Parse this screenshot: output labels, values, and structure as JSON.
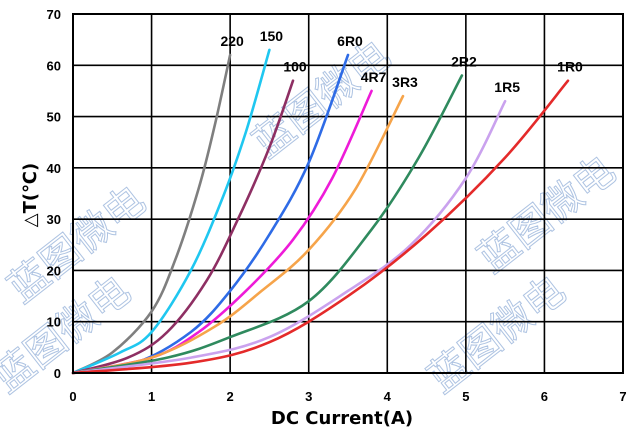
{
  "chart_data": {
    "type": "line",
    "xlabel": "DC Current(A)",
    "ylabel": "△T(℃)",
    "xlim": [
      0,
      7
    ],
    "ylim": [
      0,
      70
    ],
    "xticks": [
      "0",
      "1",
      "2",
      "3",
      "4",
      "5",
      "6",
      "7"
    ],
    "yticks": [
      "0",
      "10",
      "20",
      "30",
      "40",
      "50",
      "60",
      "70"
    ],
    "grid": true,
    "series": [
      {
        "name": "220",
        "color": "#7f7f7f",
        "x": [
          0,
          0.5,
          1.0,
          1.3,
          1.6,
          1.8,
          2.0
        ],
        "y": [
          0,
          4,
          12,
          22,
          36,
          48,
          62
        ]
      },
      {
        "name": "150",
        "color": "#1fc7f0",
        "x": [
          0,
          0.6,
          1.0,
          1.5,
          1.9,
          2.2,
          2.5
        ],
        "y": [
          0,
          4,
          8,
          20,
          34,
          47,
          63
        ]
      },
      {
        "name": "100",
        "color": "#8e2f63",
        "x": [
          0,
          0.7,
          1.2,
          1.7,
          2.1,
          2.5,
          2.8
        ],
        "y": [
          0,
          3,
          8,
          18,
          30,
          44,
          57
        ]
      },
      {
        "name": "6R0",
        "color": "#2e6be6",
        "x": [
          0,
          0.8,
          1.5,
          2.0,
          2.5,
          3.0,
          3.5
        ],
        "y": [
          0,
          2,
          8,
          16,
          27,
          41,
          62
        ]
      },
      {
        "name": "4R7",
        "color": "#ee1bd8",
        "x": [
          0,
          1.0,
          1.6,
          2.2,
          2.8,
          3.3,
          3.8
        ],
        "y": [
          0,
          3,
          8,
          16,
          26,
          38,
          55
        ]
      },
      {
        "name": "3R3",
        "color": "#f6a44a",
        "x": [
          0,
          1.0,
          1.8,
          2.4,
          3.0,
          3.6,
          4.2
        ],
        "y": [
          0,
          3,
          9,
          16,
          24,
          36,
          54
        ]
      },
      {
        "name": "2R2",
        "color": "#2f8a5e",
        "x": [
          0,
          1.2,
          2.0,
          3.0,
          3.8,
          4.4,
          4.95
        ],
        "y": [
          0,
          3,
          7,
          14,
          28,
          42,
          58
        ]
      },
      {
        "name": "1R5",
        "color": "#caa2ee",
        "x": [
          0,
          1.5,
          2.5,
          3.5,
          4.3,
          5.0,
          5.5
        ],
        "y": [
          0,
          3,
          7,
          16,
          25,
          38,
          53
        ]
      },
      {
        "name": "1R0",
        "color": "#e42a2a",
        "x": [
          0,
          1.5,
          2.5,
          3.5,
          4.5,
          5.5,
          6.3
        ],
        "y": [
          0,
          2,
          6,
          15,
          27,
          42,
          57
        ]
      }
    ]
  },
  "watermark": "蓝图微电"
}
